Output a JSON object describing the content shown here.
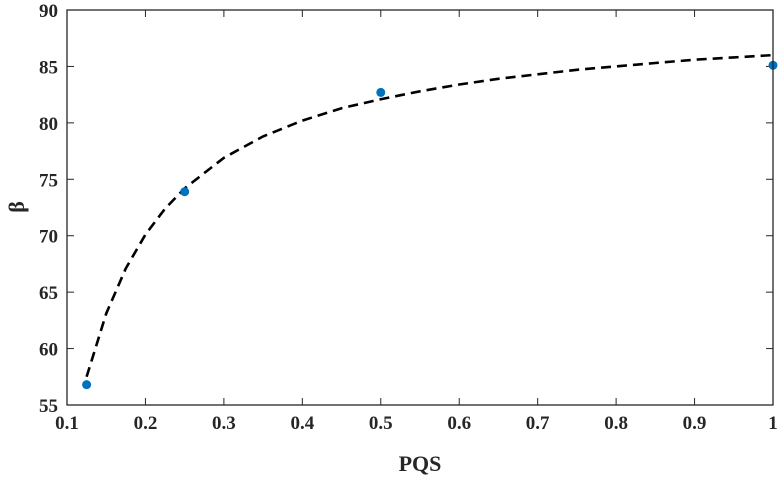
{
  "chart_data": {
    "type": "scatter",
    "xlabel": "PQS",
    "ylabel": "β",
    "xlim": [
      0.1,
      1
    ],
    "ylim": [
      55,
      90
    ],
    "xticks": [
      0.1,
      0.2,
      0.3,
      0.4,
      0.5,
      0.6,
      0.7,
      0.8,
      0.9,
      1
    ],
    "xtick_labels": [
      "0.1",
      "0.2",
      "0.3",
      "0.4",
      "0.5",
      "0.6",
      "0.7",
      "0.8",
      "0.9",
      "1"
    ],
    "yticks": [
      55,
      60,
      65,
      70,
      75,
      80,
      85,
      90
    ],
    "ytick_labels": [
      "55",
      "60",
      "65",
      "70",
      "75",
      "80",
      "85",
      "90"
    ],
    "grid": false,
    "box": true,
    "series": [
      {
        "kind": "points",
        "color": "#0072BD",
        "x": [
          0.125,
          0.25,
          0.5,
          1.0
        ],
        "y": [
          56.8,
          73.9,
          82.7,
          85.1
        ]
      },
      {
        "kind": "fit-line",
        "style": "dashed",
        "color": "#000000",
        "x": [
          0.125,
          0.15,
          0.175,
          0.2,
          0.225,
          0.25,
          0.3,
          0.35,
          0.4,
          0.45,
          0.5,
          0.55,
          0.6,
          0.65,
          0.7,
          0.75,
          0.8,
          0.85,
          0.9,
          0.95,
          1.0
        ],
        "y": [
          57.5,
          63.1,
          67.1,
          70.1,
          72.4,
          74.2,
          76.9,
          78.8,
          80.2,
          81.3,
          82.1,
          82.8,
          83.4,
          83.9,
          84.3,
          84.7,
          85.0,
          85.3,
          85.6,
          85.8,
          86.0
        ]
      }
    ]
  }
}
